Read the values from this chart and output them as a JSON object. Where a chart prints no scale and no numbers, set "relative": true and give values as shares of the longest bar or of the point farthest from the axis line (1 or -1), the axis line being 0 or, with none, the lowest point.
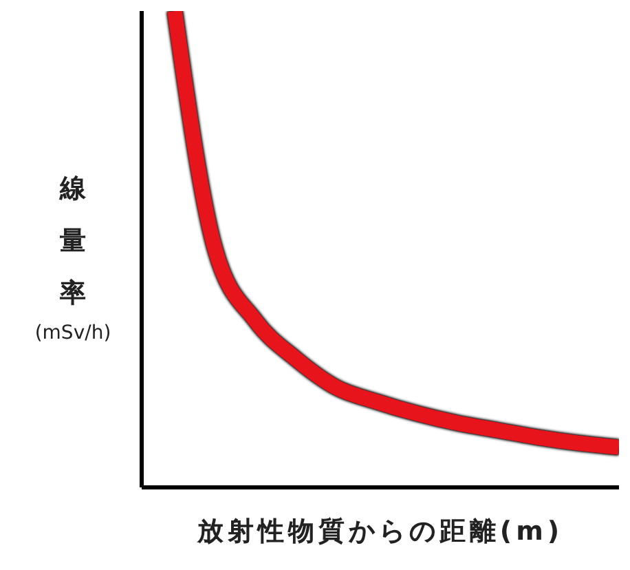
{
  "chart_data": {
    "type": "line",
    "relative": true,
    "xlabel": "放射性物質からの距離(m)",
    "ylabel": "線量率(mSv/h)",
    "categories": [
      null,
      null,
      null,
      null,
      null,
      null,
      null,
      null,
      null,
      null,
      null,
      null
    ],
    "series": [
      {
        "color": "#e8141b",
        "values": [
          1.0,
          0.5,
          0.35,
          0.27,
          0.21,
          0.18,
          0.155,
          0.135,
          0.12,
          0.105,
          0.093,
          0.084
        ]
      }
    ]
  }
}
